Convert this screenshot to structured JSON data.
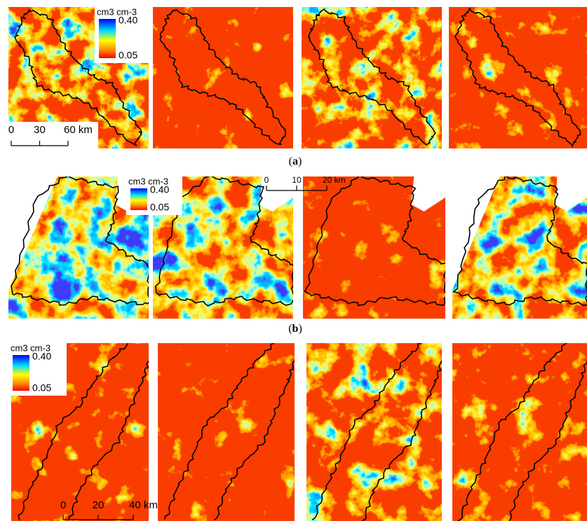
{
  "panels": [
    {
      "label": [
        "(",
        "a",
        ")"
      ],
      "legend": {
        "unit": "cm3 cm-3",
        "max": "0.40",
        "min": "0.05"
      },
      "scale_bar": [
        "0",
        "30",
        "60 km"
      ]
    },
    {
      "label": [
        "(",
        "b",
        ")"
      ],
      "legend": {
        "unit": "cm3 cm-3",
        "max": "0.40",
        "min": "0.05"
      },
      "scale_bar": [
        "0",
        "10",
        "20 km"
      ]
    },
    {
      "legend": {
        "unit": "cm3 cm-3",
        "max": "0.40",
        "min": "0.05"
      },
      "scale_bar": [
        "0",
        "20",
        "40 km"
      ]
    }
  ]
}
